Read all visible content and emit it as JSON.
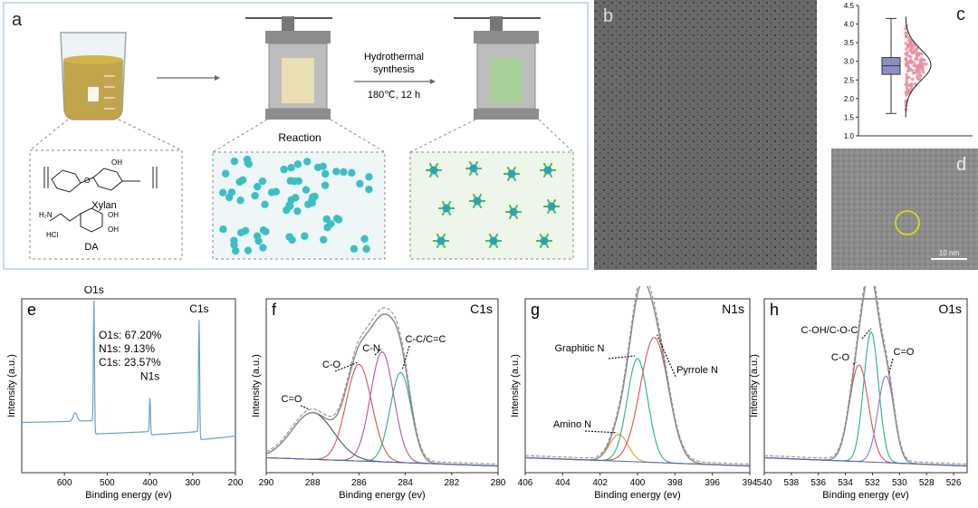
{
  "panel_a": {
    "label": "a",
    "arrow_text_1": "Hydrothermal",
    "arrow_text_2": "synthesis",
    "arrow_text_3": "180℃,   12 h",
    "reaction_label": "Reaction",
    "xylan_label": "Xylan",
    "hcl_label": "HCl",
    "da_label": "DA",
    "oh_label": "OH",
    "o_label": "O",
    "h2n_label": "H₂N"
  },
  "panel_b": {
    "label": "b"
  },
  "panel_c": {
    "label": "c"
  },
  "panel_d": {
    "label": "d",
    "scale_text": "10 nm"
  },
  "chart_data": [
    {
      "id": "c",
      "type": "box",
      "ylim": [
        1.0,
        4.5
      ],
      "yticks": [
        "1.0",
        "1.5",
        "2.0",
        "2.5",
        "3.0",
        "3.5",
        "4.0",
        "4.5"
      ],
      "box": {
        "whisker_low": 1.6,
        "q1": 2.65,
        "median": 2.88,
        "q3": 3.1,
        "whisker_high": 4.15
      }
    },
    {
      "id": "e",
      "label": "e",
      "type": "line",
      "xlabel": "Binding energy (ev)",
      "ylabel": "Intensity (a.u.)",
      "xlim": [
        700,
        200
      ],
      "xticks": [
        "600",
        "500",
        "400",
        "300",
        "200"
      ],
      "peaks": [
        {
          "name": "O1s",
          "x": 531
        },
        {
          "name": "N1s",
          "x": 400
        },
        {
          "name": "C1s",
          "x": 285
        }
      ],
      "composition": [
        "O1s: 67.20%",
        "N1s: 9.13%",
        "C1s: 23.57%"
      ]
    },
    {
      "id": "f",
      "label": "f",
      "title": "C1s",
      "type": "line",
      "xlabel": "Binding energy (ev)",
      "ylabel": "Intensity (a.u.)",
      "xlim": [
        290,
        280
      ],
      "xticks": [
        "290",
        "288",
        "286",
        "284",
        "282",
        "280"
      ],
      "components": [
        {
          "name": "C=O",
          "center": 288.0,
          "height": 0.28,
          "width": 0.9,
          "color": "#555555"
        },
        {
          "name": "C-O",
          "center": 286.0,
          "height": 0.58,
          "width": 0.55,
          "color": "#d9534f"
        },
        {
          "name": "C-N",
          "center": 285.0,
          "height": 0.66,
          "width": 0.5,
          "color": "#b054a8"
        },
        {
          "name": "C-C/C=C",
          "center": 284.2,
          "height": 0.54,
          "width": 0.45,
          "color": "#2ab08a"
        }
      ]
    },
    {
      "id": "g",
      "label": "g",
      "title": "N1s",
      "type": "line",
      "xlabel": "Binding energy (ev)",
      "ylabel": "Intensity (a.u.)",
      "xlim": [
        406,
        394
      ],
      "xticks": [
        "406",
        "404",
        "402",
        "400",
        "398",
        "396",
        "394"
      ],
      "components": [
        {
          "name": "Amino N",
          "center": 401.0,
          "height": 0.16,
          "width": 0.5,
          "color": "#e39b2b"
        },
        {
          "name": "Graphitic N",
          "center": 400.0,
          "height": 0.62,
          "width": 0.55,
          "color": "#2ab08a"
        },
        {
          "name": "Pyrrole N",
          "center": 399.1,
          "height": 0.75,
          "width": 0.75,
          "color": "#d9534f"
        }
      ]
    },
    {
      "id": "h",
      "label": "h",
      "title": "O1s",
      "type": "line",
      "xlabel": "Binding energy (ev)",
      "ylabel": "Intensity (a.u.)",
      "xlim": [
        540,
        525
      ],
      "xticks": [
        "540",
        "538",
        "536",
        "534",
        "532",
        "530",
        "528",
        "526"
      ],
      "components": [
        {
          "name": "C-O",
          "center": 533.0,
          "height": 0.58,
          "width": 0.7,
          "color": "#d9534f"
        },
        {
          "name": "C-OH/C-O-C",
          "center": 532.1,
          "height": 0.78,
          "width": 0.55,
          "color": "#2ab08a"
        },
        {
          "name": "C=O",
          "center": 531.0,
          "height": 0.52,
          "width": 0.6,
          "color": "#9b72c8"
        }
      ]
    }
  ]
}
